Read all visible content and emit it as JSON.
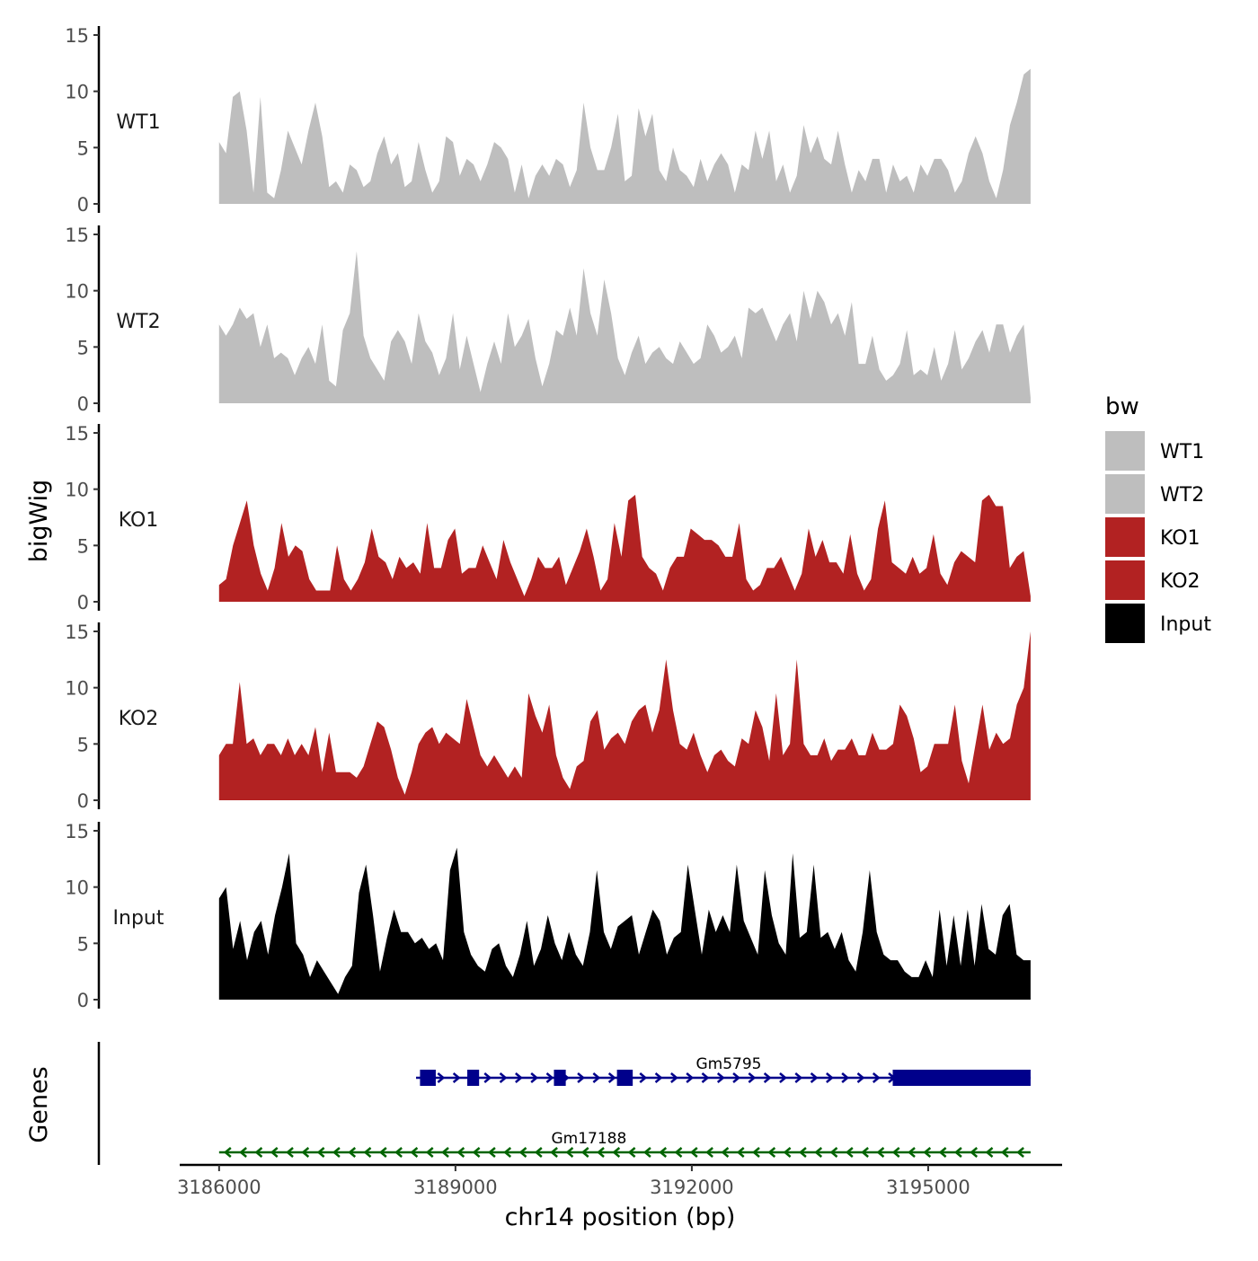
{
  "chart_data": {
    "type": "area",
    "xlabel": "chr14 position (bp)",
    "ylabel": "bigWig",
    "genes_label": "Genes",
    "xlim": [
      3185500,
      3196700
    ],
    "x_ticks": [
      3186000,
      3189000,
      3192000,
      3195000
    ],
    "x_tick_labels": [
      "3186000",
      "3189000",
      "3192000",
      "3195000"
    ],
    "ylim": [
      0,
      15
    ],
    "y_ticks": [
      0,
      5,
      10,
      15
    ],
    "y_tick_labels": [
      "0",
      "5",
      "10",
      "15"
    ],
    "region": [
      3186000,
      3196300
    ],
    "legend": {
      "title": "bw",
      "position": "right",
      "entries": [
        {
          "label": "WT1",
          "color": "#BEBEBE"
        },
        {
          "label": "WT2",
          "color": "#BEBEBE"
        },
        {
          "label": "KO1",
          "color": "#B22222"
        },
        {
          "label": "KO2",
          "color": "#B22222"
        },
        {
          "label": "Input",
          "color": "#000000"
        }
      ]
    },
    "series": [
      {
        "name": "WT1",
        "color": "#BEBEBE",
        "values": [
          5.5,
          4.5,
          9.5,
          10,
          6.5,
          1,
          9.5,
          1,
          0.5,
          3,
          6.5,
          5,
          3.5,
          6.5,
          9,
          6,
          1.5,
          2,
          1,
          3.5,
          3,
          1.5,
          2,
          4.5,
          6,
          3.5,
          4.5,
          1.5,
          2,
          5.5,
          3,
          1,
          2,
          6,
          5.5,
          2.5,
          4,
          3.5,
          2,
          3.5,
          5.5,
          5,
          4,
          1,
          3.5,
          0.5,
          2.5,
          3.5,
          2.5,
          4,
          3.5,
          1.5,
          3,
          9,
          5,
          3,
          3,
          5,
          8,
          2,
          2.5,
          8.5,
          6,
          8,
          3,
          2,
          5,
          3,
          2.5,
          1.5,
          4,
          2,
          3.5,
          4.5,
          3.5,
          1,
          3.5,
          3,
          6.5,
          4,
          6.5,
          2,
          3.5,
          1,
          2.5,
          7,
          4.5,
          6,
          4,
          3.5,
          6.5,
          3.5,
          1,
          3,
          2,
          4,
          4,
          1,
          3.5,
          2,
          2.5,
          1,
          3.5,
          2.5,
          4,
          4,
          3,
          1,
          2,
          4.5,
          6,
          4.5,
          2,
          0.5,
          3,
          7,
          9,
          11.5,
          12
        ]
      },
      {
        "name": "WT2",
        "color": "#BEBEBE",
        "values": [
          7,
          6,
          7,
          8.5,
          7.5,
          8,
          5,
          7,
          4,
          4.5,
          4,
          2.5,
          4,
          5,
          3.5,
          7,
          2,
          1.5,
          6.5,
          8,
          13.5,
          6,
          4,
          3,
          2,
          5.5,
          6.5,
          5.5,
          3.5,
          8,
          5.5,
          4.5,
          2.5,
          4,
          8,
          3,
          6,
          3.5,
          1,
          3.5,
          5.5,
          3.5,
          8,
          5,
          6,
          7.5,
          4,
          1.5,
          3.5,
          6.5,
          6,
          8.5,
          6,
          12,
          8,
          6,
          11,
          8,
          4,
          2.5,
          4.5,
          6,
          3.5,
          4.5,
          5,
          4,
          3.5,
          5.5,
          4.5,
          3.5,
          4,
          7,
          6,
          4.5,
          5,
          6,
          4,
          8.5,
          8,
          8.5,
          7,
          5.5,
          7,
          8,
          5.5,
          10,
          7.5,
          10,
          9,
          7,
          8,
          6,
          9,
          3.5,
          3.5,
          6,
          3,
          2,
          2.5,
          3.5,
          6.5,
          2.5,
          3,
          2.5,
          5,
          2,
          3.5,
          6.5,
          3,
          4,
          5.5,
          6.5,
          4.5,
          7,
          7,
          4.5,
          6,
          7,
          0.5
        ]
      },
      {
        "name": "KO1",
        "color": "#B22222",
        "values": [
          1.5,
          2,
          5,
          7,
          9,
          5,
          2.5,
          1,
          3,
          7,
          4,
          5,
          4.5,
          2,
          1,
          1,
          1,
          5,
          2,
          1,
          2,
          3.5,
          6.5,
          4,
          3.5,
          2,
          4,
          3,
          3.5,
          2.5,
          7,
          3,
          3,
          5.5,
          6.5,
          2.5,
          3,
          3,
          5,
          3.5,
          2,
          5.5,
          3.5,
          2,
          0.5,
          2,
          4,
          3,
          3,
          4,
          1.5,
          3,
          4.5,
          6.5,
          4,
          1,
          2,
          7,
          4,
          9,
          9.5,
          4,
          3,
          2.5,
          1,
          3,
          4,
          4,
          6.5,
          6,
          5.5,
          5.5,
          5,
          4,
          4,
          7,
          2,
          1,
          1.5,
          3,
          3,
          4,
          2.5,
          1,
          2.5,
          6.5,
          4,
          5.5,
          3.5,
          3.5,
          2.5,
          6,
          2.5,
          1,
          2,
          6.5,
          9,
          3.5,
          3,
          2.5,
          4,
          2.5,
          3,
          6,
          2.5,
          1.5,
          3.5,
          4.5,
          4,
          3.5,
          9,
          9.5,
          8.5,
          8.5,
          3,
          4,
          4.5,
          0.5
        ]
      },
      {
        "name": "KO2",
        "color": "#B22222",
        "values": [
          4,
          5,
          5,
          10.5,
          5,
          5.5,
          4,
          5,
          5,
          4,
          5.5,
          4,
          5,
          4,
          6.5,
          2.5,
          6,
          2.5,
          2.5,
          2.5,
          2,
          3,
          5,
          7,
          6.5,
          4.5,
          2,
          0.5,
          2.5,
          5,
          6,
          6.5,
          5,
          6,
          5.5,
          5,
          9,
          6.5,
          4,
          3,
          4,
          3,
          2,
          3,
          2,
          9.5,
          7.5,
          6,
          8.5,
          4,
          2,
          1,
          3,
          3.5,
          7,
          8,
          4.5,
          5.5,
          6,
          5,
          7,
          8,
          8.5,
          6,
          8,
          12.5,
          8,
          5,
          4.5,
          6,
          4,
          2.5,
          4,
          4.5,
          3.5,
          3,
          5.5,
          5,
          8,
          6.5,
          3.5,
          9.5,
          4,
          5,
          12.5,
          5,
          4,
          4,
          5.5,
          3.5,
          4.5,
          4.5,
          5.5,
          4,
          4,
          6,
          4.5,
          4.5,
          5,
          8.5,
          7.5,
          5.5,
          2.5,
          3,
          5,
          5,
          5,
          8.5,
          3.5,
          1.5,
          5,
          8.5,
          4.5,
          6,
          5,
          5.5,
          8.5,
          10,
          15
        ]
      },
      {
        "name": "Input",
        "color": "#000000",
        "values": [
          9,
          10,
          4.5,
          7,
          3.5,
          6,
          7,
          4,
          7.5,
          10,
          13,
          5,
          4,
          2,
          3.5,
          2.5,
          1.5,
          0.5,
          2,
          3,
          9.5,
          12,
          7.5,
          2.5,
          5.5,
          8,
          6,
          6,
          5,
          5.5,
          4.5,
          5,
          3.5,
          11.5,
          13.5,
          6,
          4,
          3,
          2.5,
          4.5,
          5,
          3,
          2,
          4,
          7,
          3,
          4.5,
          7.5,
          5,
          3.5,
          6,
          4,
          3,
          6,
          11.5,
          6,
          4.5,
          6.5,
          7,
          7.5,
          4,
          6,
          8,
          7,
          4,
          5.5,
          6,
          12,
          8,
          4,
          8,
          6,
          7.5,
          6,
          12,
          7,
          5.5,
          4,
          11.5,
          7.5,
          5,
          4,
          13,
          5.5,
          6,
          12,
          5.5,
          6,
          4.5,
          6,
          3.5,
          2.5,
          6,
          11.5,
          6,
          4,
          3.5,
          3.5,
          2.5,
          2,
          2,
          3.5,
          2,
          8,
          3,
          7.5,
          3,
          8,
          3,
          8.5,
          4.5,
          4,
          7.5,
          8.5,
          4,
          3.5,
          3.5
        ]
      }
    ],
    "genes": [
      {
        "name": "Gm5795",
        "strand": "+",
        "color": "#00008B",
        "start": 3188500,
        "end": 3196300,
        "exons": [
          [
            3188550,
            3188750
          ],
          [
            3189150,
            3189300
          ],
          [
            3190250,
            3190400
          ],
          [
            3191050,
            3191250
          ],
          [
            3194550,
            3196300
          ]
        ]
      },
      {
        "name": "Gm17188",
        "strand": "-",
        "color": "#006400",
        "start": 3186000,
        "end": 3196300,
        "exons": []
      }
    ]
  }
}
